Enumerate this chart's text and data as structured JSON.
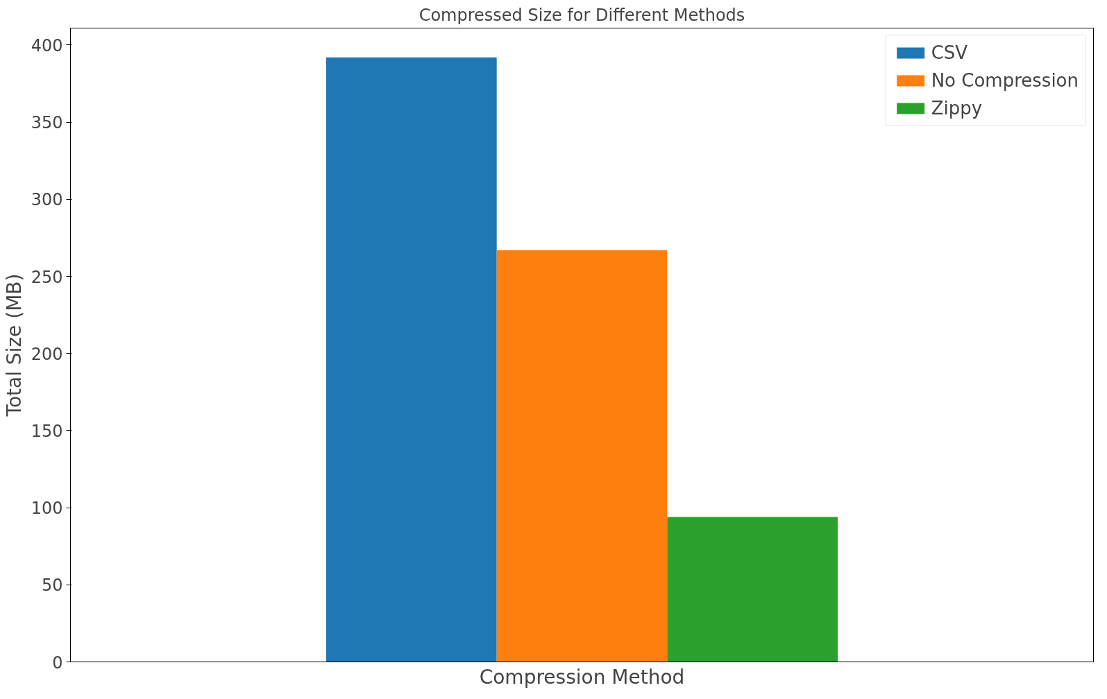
{
  "chart_data": {
    "type": "bar",
    "title": "Compressed Size for Different Methods",
    "xlabel": "Compression Method",
    "ylabel": "Total Size (MB)",
    "categories": [
      null
    ],
    "series": [
      {
        "name": "CSV",
        "color": "#1f77b4",
        "values": [
          392
        ]
      },
      {
        "name": "No Compression",
        "color": "#ff7f0e",
        "values": [
          267
        ]
      },
      {
        "name": "Zippy",
        "color": "#2ca02c",
        "values": [
          94
        ]
      }
    ],
    "ylim": [
      0,
      411
    ],
    "yticks": [
      0,
      50,
      100,
      150,
      200,
      250,
      300,
      350,
      400
    ],
    "grid": false,
    "legend": "top right"
  }
}
